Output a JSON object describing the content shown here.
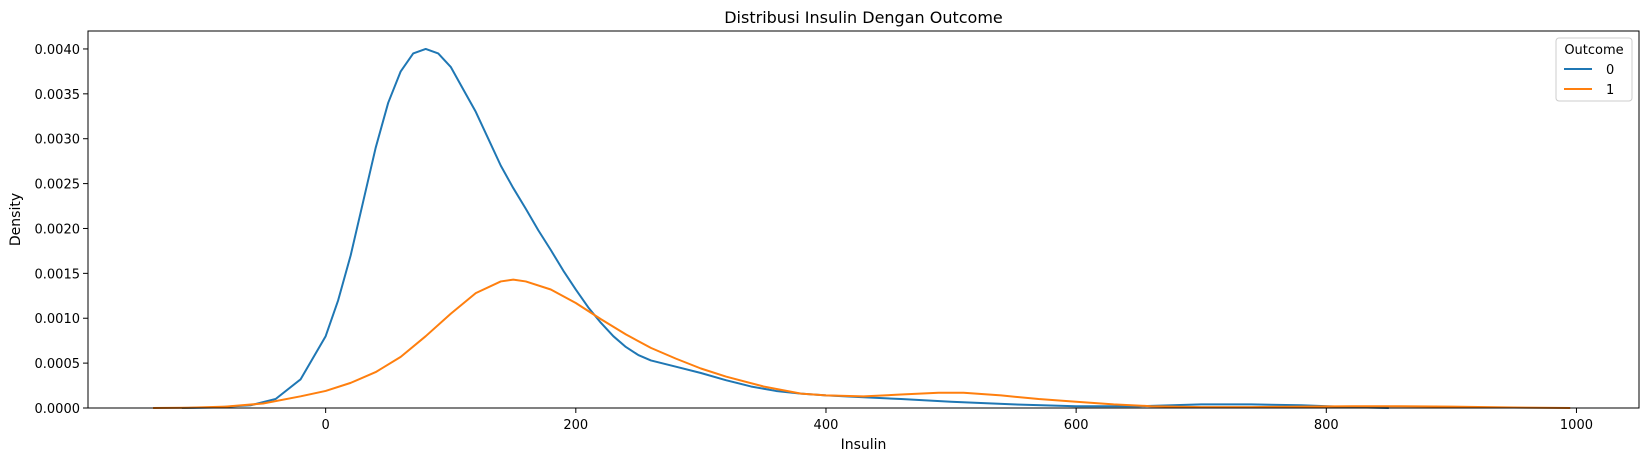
{
  "chart_data": {
    "type": "line",
    "title": "Distribusi Insulin Dengan Outcome",
    "xlabel": "Insulin",
    "ylabel": "Density",
    "xlim": [
      -190,
      1050
    ],
    "ylim": [
      0,
      0.0042
    ],
    "xticks": [
      0,
      200,
      400,
      600,
      800,
      1000
    ],
    "xtick_labels": [
      "0",
      "200",
      "400",
      "600",
      "800",
      "1000"
    ],
    "yticks": [
      0,
      0.0005,
      0.001,
      0.0015,
      0.002,
      0.0025,
      0.003,
      0.0035,
      0.004
    ],
    "ytick_labels": [
      "0.0000",
      "0.0005",
      "0.0010",
      "0.0015",
      "0.0020",
      "0.0025",
      "0.0030",
      "0.0035",
      "0.0040"
    ],
    "grid": false,
    "legend": {
      "title": "Outcome",
      "placement": "top-right"
    },
    "series": [
      {
        "name": "0",
        "color": "#1f77b4",
        "x": [
          -115,
          -90,
          -60,
          -40,
          -20,
          0,
          10,
          20,
          30,
          40,
          50,
          60,
          70,
          80,
          90,
          100,
          110,
          120,
          130,
          140,
          150,
          160,
          170,
          180,
          190,
          200,
          210,
          220,
          230,
          240,
          250,
          260,
          280,
          300,
          320,
          340,
          360,
          380,
          400,
          430,
          460,
          500,
          550,
          600,
          650,
          700,
          740,
          780,
          820,
          850
        ],
        "y": [
          0,
          5e-06,
          3e-05,
          0.0001,
          0.00032,
          0.0008,
          0.0012,
          0.0017,
          0.0023,
          0.0029,
          0.0034,
          0.00375,
          0.00395,
          0.004,
          0.00395,
          0.0038,
          0.00355,
          0.0033,
          0.003,
          0.0027,
          0.00245,
          0.00222,
          0.00198,
          0.00176,
          0.00153,
          0.00132,
          0.00112,
          0.00095,
          0.0008,
          0.00068,
          0.00059,
          0.00053,
          0.00046,
          0.00039,
          0.00031,
          0.00024,
          0.00019,
          0.00016,
          0.00014,
          0.00012,
          0.0001,
          7e-05,
          4e-05,
          2e-05,
          2e-05,
          4e-05,
          4e-05,
          3e-05,
          1e-05,
          0
        ]
      },
      {
        "name": "1",
        "color": "#ff7f0e",
        "x": [
          -138,
          -110,
          -80,
          -50,
          -20,
          0,
          20,
          40,
          60,
          80,
          100,
          120,
          140,
          150,
          160,
          180,
          200,
          220,
          240,
          260,
          280,
          300,
          320,
          350,
          380,
          400,
          430,
          460,
          490,
          510,
          540,
          570,
          600,
          630,
          660,
          700,
          740,
          780,
          820,
          860,
          900,
          950,
          995
        ],
        "y": [
          0,
          3e-06,
          1.5e-05,
          5e-05,
          0.00013,
          0.00019,
          0.00028,
          0.0004,
          0.00057,
          0.0008,
          0.00105,
          0.00128,
          0.00141,
          0.00143,
          0.00141,
          0.00132,
          0.00117,
          0.00099,
          0.00082,
          0.00067,
          0.00055,
          0.00044,
          0.00035,
          0.00024,
          0.00016,
          0.00014,
          0.00013,
          0.00015,
          0.00017,
          0.00017,
          0.00014,
          0.0001,
          7e-05,
          4e-05,
          2e-05,
          1e-05,
          1e-05,
          1.5e-05,
          2e-05,
          2e-05,
          1.5e-05,
          5e-06,
          0
        ]
      }
    ]
  }
}
